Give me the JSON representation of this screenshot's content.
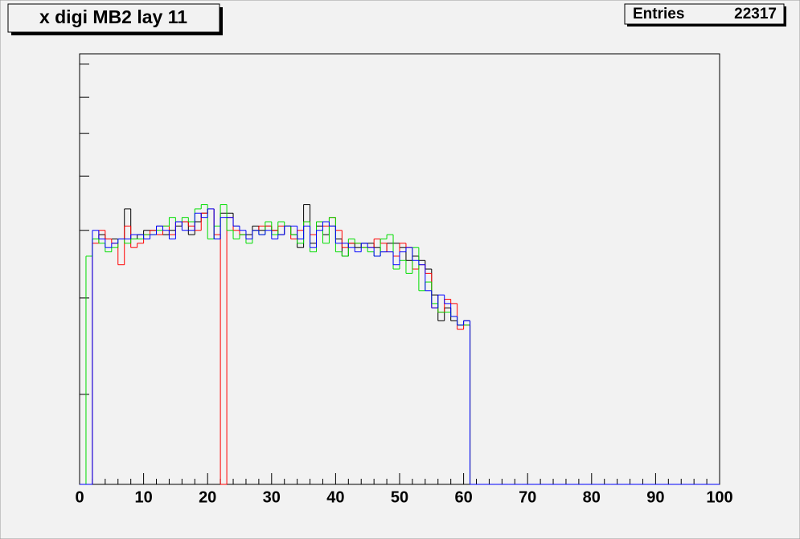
{
  "chart_data": {
    "type": "step-histogram",
    "title": "x digi MB2 lay 11",
    "stats": {
      "label": "Entries",
      "value": 22317
    },
    "bins": [
      0,
      1,
      2,
      3,
      4,
      5,
      6,
      7,
      8,
      9,
      10,
      11,
      12,
      13,
      14,
      15,
      16,
      17,
      18,
      19,
      20,
      21,
      22,
      23,
      24,
      25,
      26,
      27,
      28,
      29,
      30,
      31,
      32,
      33,
      34,
      35,
      36,
      37,
      38,
      39,
      40,
      41,
      42,
      43,
      44,
      45,
      46,
      47,
      48,
      49,
      50,
      51,
      52,
      53,
      54,
      55,
      56,
      57,
      58,
      59,
      60,
      61,
      62,
      63,
      64,
      65,
      66,
      67,
      68,
      69,
      70,
      71,
      72,
      73,
      74,
      75,
      76,
      77,
      78,
      79,
      80,
      81,
      82,
      83,
      84,
      85,
      86,
      87,
      88,
      89,
      90,
      91,
      92,
      93,
      94,
      95,
      96,
      97,
      98,
      99,
      100
    ],
    "xlim": [
      0,
      100
    ],
    "xticks": [
      0,
      10,
      20,
      30,
      40,
      50,
      60,
      70,
      80,
      90,
      100
    ],
    "ylim": [
      0,
      100
    ],
    "yticks": [
      20.9,
      43.3,
      59,
      71.6,
      81.5,
      89.9,
      97.6
    ],
    "series": [
      {
        "color": "#000000",
        "values": [
          0,
          0,
          57,
          58,
          57,
          57,
          57,
          64,
          57,
          58,
          59,
          59,
          60,
          58,
          59,
          60,
          61,
          58,
          61,
          63,
          64,
          57,
          63,
          63,
          60,
          58,
          58,
          60,
          59,
          60,
          59,
          58,
          60,
          58,
          55,
          65,
          56,
          60,
          58,
          60,
          57,
          53,
          56,
          55,
          56,
          56,
          55,
          54,
          56,
          56,
          55,
          52,
          53,
          52,
          50,
          44,
          38,
          41,
          38,
          37,
          38,
          0,
          0,
          0,
          0,
          0,
          0,
          0,
          0,
          0,
          0,
          0,
          0,
          0,
          0,
          0,
          0,
          0,
          0,
          0,
          0,
          0,
          0,
          0,
          0,
          0,
          0,
          0,
          0,
          0,
          0,
          0,
          0,
          0,
          0,
          0,
          0,
          0,
          0,
          0
        ]
      },
      {
        "color": "#ff0000",
        "values": [
          0,
          0,
          56,
          59,
          57,
          56,
          51,
          60,
          55,
          56,
          58,
          59,
          58,
          60,
          58,
          61,
          61,
          60,
          59,
          63,
          64,
          58,
          0,
          62,
          59,
          58,
          57,
          59,
          60,
          60,
          59,
          60,
          60,
          57,
          59,
          61,
          58,
          61,
          60,
          62,
          59,
          55,
          56,
          56,
          55,
          55,
          57,
          56,
          54,
          53,
          56,
          55,
          50,
          51,
          49,
          41,
          40,
          43,
          42,
          36,
          37,
          0,
          0,
          0,
          0,
          0,
          0,
          0,
          0,
          0,
          0,
          0,
          0,
          0,
          0,
          0,
          0,
          0,
          0,
          0,
          0,
          0,
          0,
          0,
          0,
          0,
          0,
          0,
          0,
          0,
          0,
          0,
          0,
          0,
          0,
          0,
          0,
          0,
          0,
          0
        ]
      },
      {
        "color": "#00dd00",
        "values": [
          0,
          53,
          57,
          56,
          54,
          55,
          57,
          56,
          57,
          57,
          58,
          58,
          59,
          60,
          62,
          61,
          62,
          61,
          64,
          65,
          57,
          60,
          65,
          59,
          57,
          58,
          56,
          59,
          58,
          61,
          58,
          61,
          60,
          58,
          56,
          61,
          54,
          61,
          56,
          62,
          54,
          53,
          57,
          56,
          55,
          54,
          53,
          57,
          58,
          50,
          52,
          49,
          55,
          45,
          47,
          42,
          40,
          40,
          39,
          37,
          37,
          0,
          0,
          0,
          0,
          0,
          0,
          0,
          0,
          0,
          0,
          0,
          0,
          0,
          0,
          0,
          0,
          0,
          0,
          0,
          0,
          0,
          0,
          0,
          0,
          0,
          0,
          0,
          0,
          0,
          0,
          0,
          0,
          0,
          0,
          0,
          0,
          0,
          0,
          0
        ]
      },
      {
        "color": "#0000ff",
        "values": [
          0,
          0,
          59,
          57,
          55,
          56,
          57,
          57,
          58,
          58,
          57,
          58,
          60,
          59,
          57,
          61,
          59,
          59,
          63,
          62,
          64,
          57,
          62,
          62,
          60,
          59,
          57,
          59,
          58,
          59,
          57,
          58,
          60,
          60,
          57,
          60,
          55,
          59,
          61,
          60,
          56,
          56,
          55,
          54,
          56,
          55,
          53,
          54,
          54,
          51,
          54,
          55,
          52,
          51,
          45,
          41,
          44,
          42,
          39,
          37,
          38,
          0,
          0,
          0,
          0,
          0,
          0,
          0,
          0,
          0,
          0,
          0,
          0,
          0,
          0,
          0,
          0,
          0,
          0,
          0,
          0,
          0,
          0,
          0,
          0,
          0,
          0,
          0,
          0,
          0,
          0,
          0,
          0,
          0,
          0,
          0,
          0,
          0,
          0,
          0
        ]
      }
    ]
  }
}
